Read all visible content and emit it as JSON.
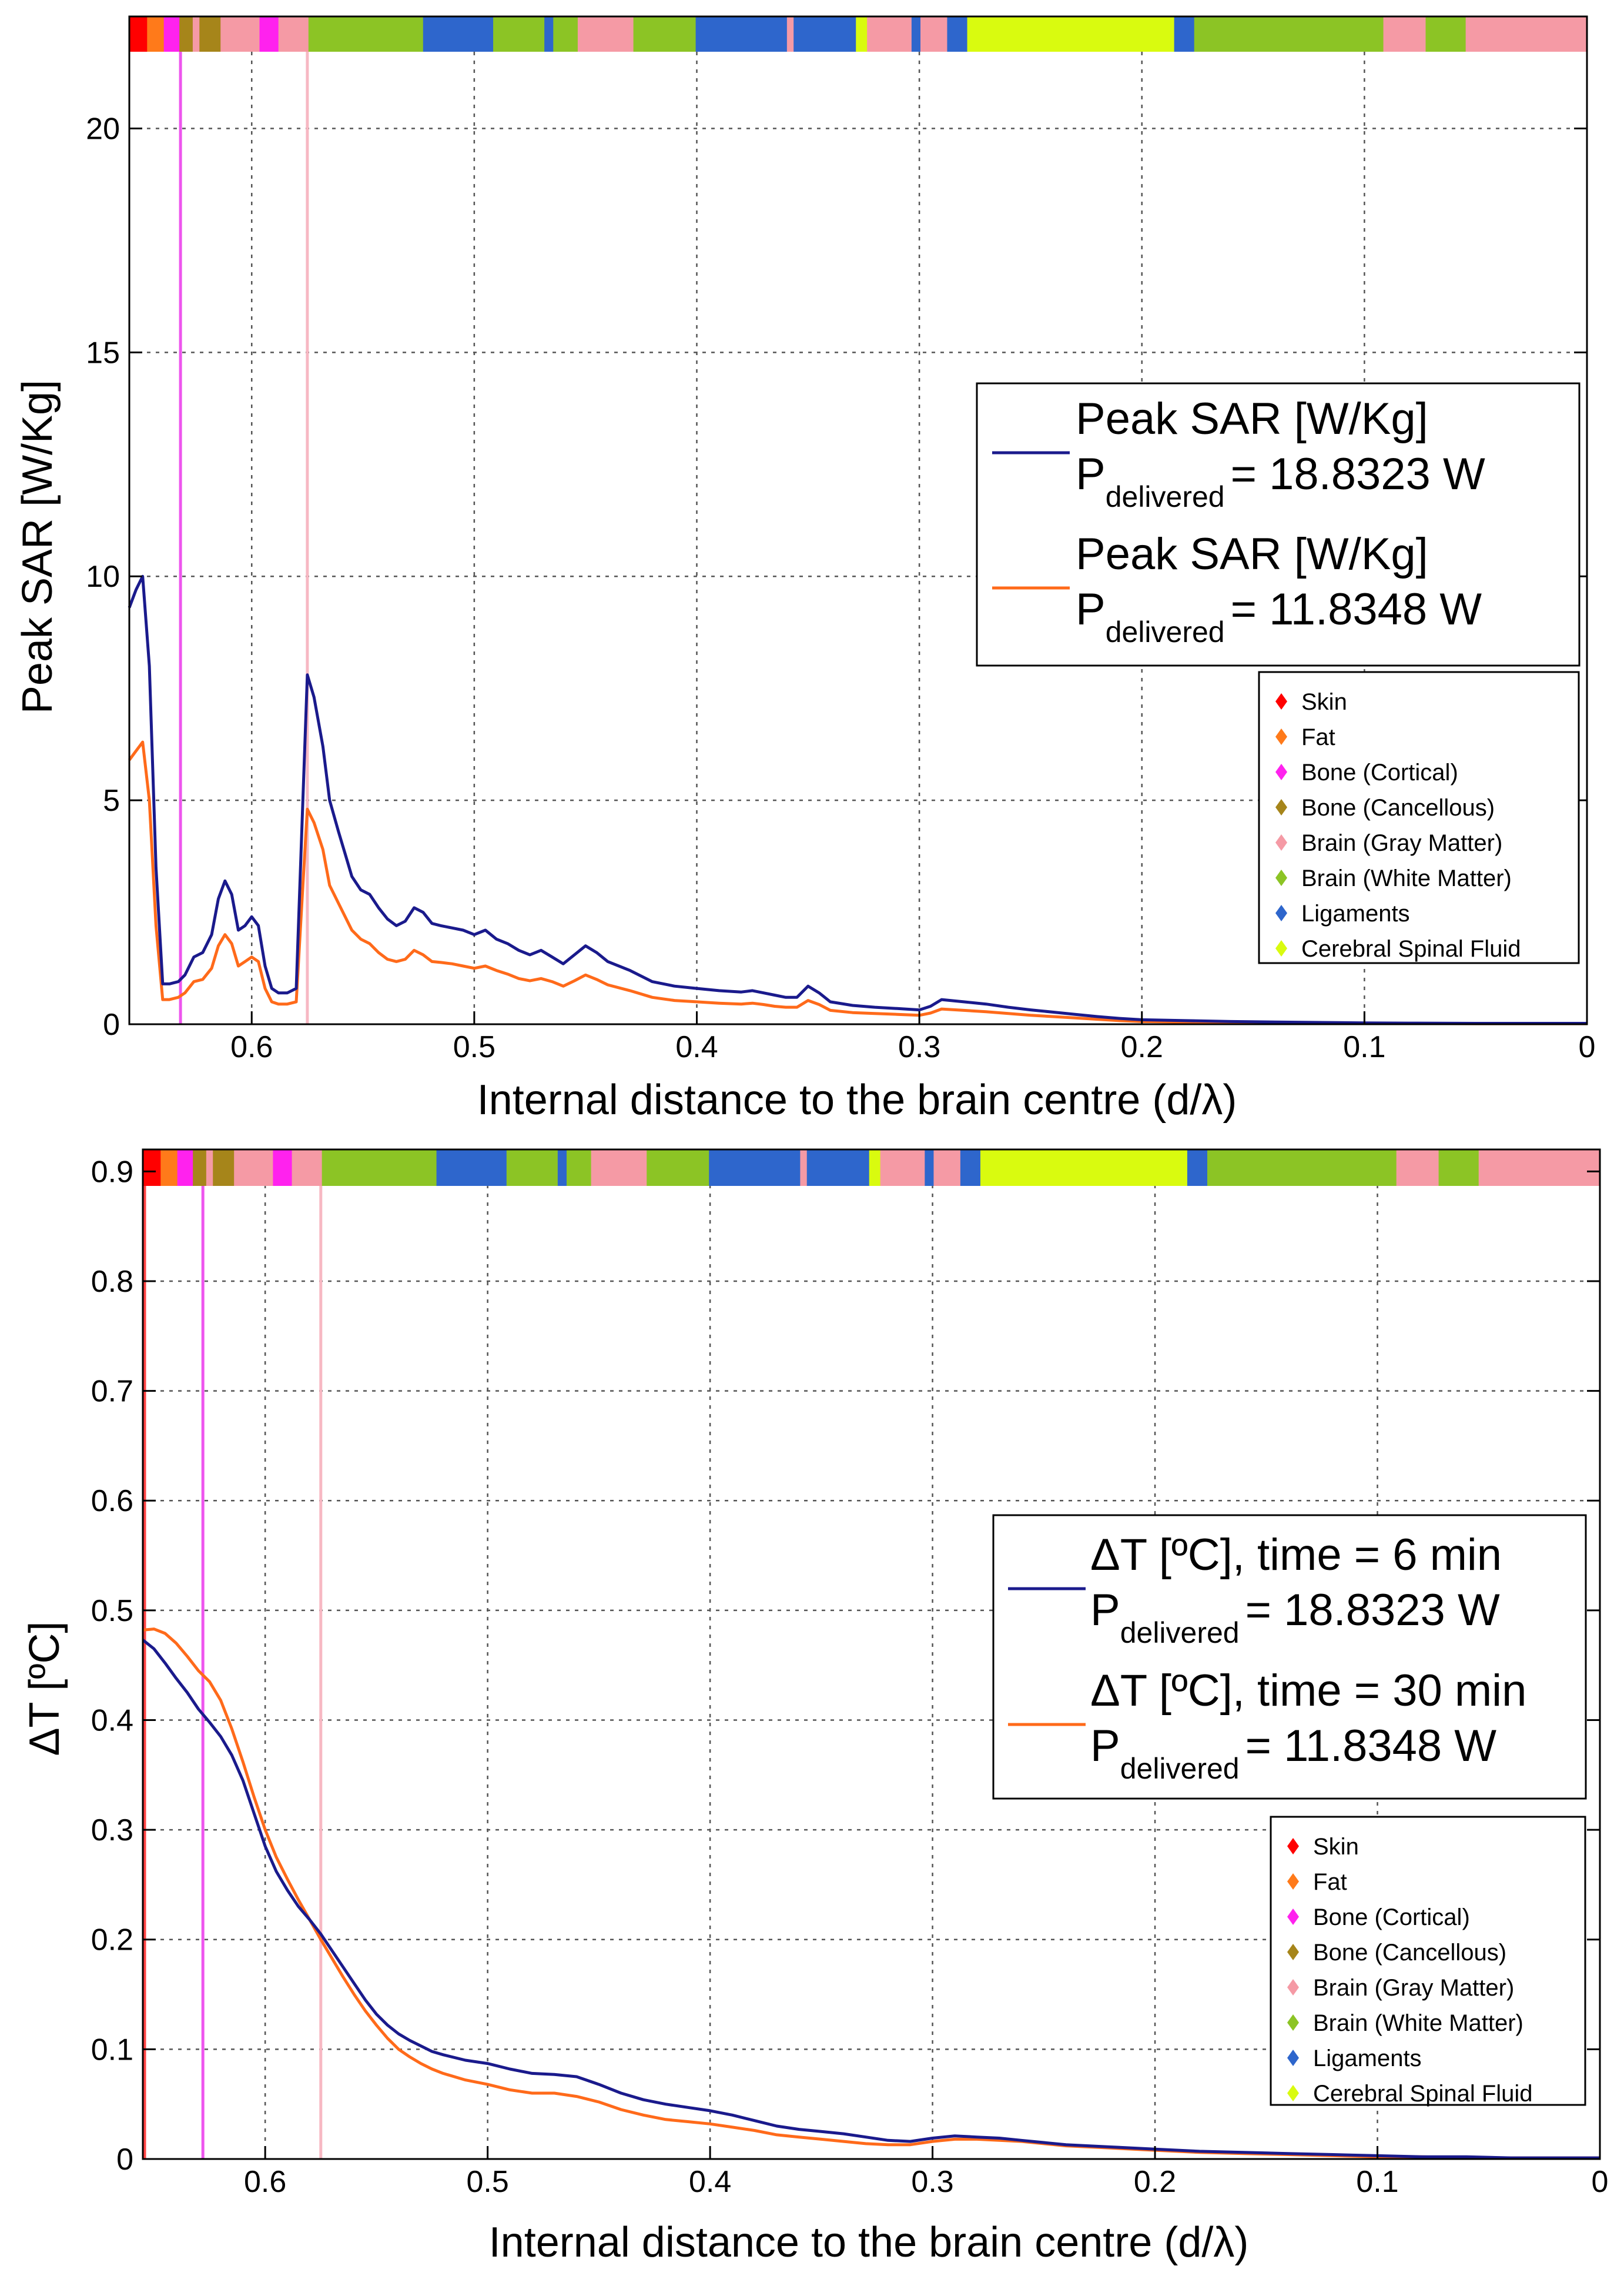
{
  "colors": {
    "series1": "#1a1a8c",
    "series2": "#ff6a1a",
    "bone_cortical_line": "#ee55ee",
    "gray_matter_line": "#f7b8c3",
    "skin_line": "#ff4444",
    "grid": "#555555"
  },
  "tissue_legend": [
    {
      "label": "Skin",
      "color": "#ff0000"
    },
    {
      "label": "Fat",
      "color": "#ff7a1a"
    },
    {
      "label": "Bone (Cortical)",
      "color": "#ff22ee"
    },
    {
      "label": "Bone (Cancellous)",
      "color": "#a6851a"
    },
    {
      "label": "Brain (Gray Matter)",
      "color": "#f59aa5"
    },
    {
      "label": "Brain (White Matter)",
      "color": "#8cc425"
    },
    {
      "label": "Ligaments",
      "color": "#2e66cc"
    },
    {
      "label": "Cerebral Spinal Fluid",
      "color": "#d9fb0f"
    }
  ],
  "tissue_strip": [
    {
      "x0": 0.655,
      "x1": 0.647,
      "tissue": "Skin"
    },
    {
      "x0": 0.647,
      "x1": 0.6395,
      "tissue": "Fat"
    },
    {
      "x0": 0.6395,
      "x1": 0.6325,
      "tissue": "Bone (Cortical)"
    },
    {
      "x0": 0.6325,
      "x1": 0.6265,
      "tissue": "Bone (Cancellous)"
    },
    {
      "x0": 0.6265,
      "x1": 0.6235,
      "tissue": "Brain (Gray Matter)"
    },
    {
      "x0": 0.6235,
      "x1": 0.614,
      "tissue": "Bone (Cancellous)"
    },
    {
      "x0": 0.614,
      "x1": 0.5965,
      "tissue": "Brain (Gray Matter)"
    },
    {
      "x0": 0.5965,
      "x1": 0.588,
      "tissue": "Bone (Cortical)"
    },
    {
      "x0": 0.588,
      "x1": 0.5745,
      "tissue": "Brain (Gray Matter)"
    },
    {
      "x0": 0.5745,
      "x1": 0.523,
      "tissue": "Brain (White Matter)"
    },
    {
      "x0": 0.523,
      "x1": 0.4915,
      "tissue": "Ligaments"
    },
    {
      "x0": 0.4915,
      "x1": 0.4685,
      "tissue": "Brain (White Matter)"
    },
    {
      "x0": 0.4685,
      "x1": 0.4645,
      "tissue": "Ligaments"
    },
    {
      "x0": 0.4645,
      "x1": 0.4535,
      "tissue": "Brain (White Matter)"
    },
    {
      "x0": 0.4535,
      "x1": 0.4285,
      "tissue": "Brain (Gray Matter)"
    },
    {
      "x0": 0.4285,
      "x1": 0.4005,
      "tissue": "Brain (White Matter)"
    },
    {
      "x0": 0.4005,
      "x1": 0.3595,
      "tissue": "Ligaments"
    },
    {
      "x0": 0.3595,
      "x1": 0.3565,
      "tissue": "Brain (Gray Matter)"
    },
    {
      "x0": 0.3565,
      "x1": 0.3285,
      "tissue": "Ligaments"
    },
    {
      "x0": 0.3285,
      "x1": 0.3235,
      "tissue": "Cerebral Spinal Fluid"
    },
    {
      "x0": 0.3235,
      "x1": 0.3035,
      "tissue": "Brain (Gray Matter)"
    },
    {
      "x0": 0.3035,
      "x1": 0.2995,
      "tissue": "Ligaments"
    },
    {
      "x0": 0.2995,
      "x1": 0.2875,
      "tissue": "Brain (Gray Matter)"
    },
    {
      "x0": 0.2875,
      "x1": 0.2785,
      "tissue": "Ligaments"
    },
    {
      "x0": 0.2785,
      "x1": 0.1855,
      "tissue": "Cerebral Spinal Fluid"
    },
    {
      "x0": 0.1855,
      "x1": 0.1765,
      "tissue": "Ligaments"
    },
    {
      "x0": 0.1765,
      "x1": 0.0915,
      "tissue": "Brain (White Matter)"
    },
    {
      "x0": 0.0915,
      "x1": 0.0725,
      "tissue": "Brain (Gray Matter)"
    },
    {
      "x0": 0.0725,
      "x1": 0.0545,
      "tissue": "Brain (White Matter)"
    },
    {
      "x0": 0.0545,
      "x1": 0.0,
      "tissue": "Brain (Gray Matter)"
    }
  ],
  "chart_data": [
    {
      "type": "line",
      "xlabel": "Internal distance to the brain centre (d/λ)",
      "ylabel": "Peak SAR [W/Kg]",
      "xlim": [
        0.655,
        0
      ],
      "ylim": [
        0,
        22.5
      ],
      "xticks": [
        0.6,
        0.5,
        0.4,
        0.3,
        0.2,
        0.1,
        0
      ],
      "xtick_labels": [
        "0.6",
        "0.5",
        "0.4",
        "0.3",
        "0.2",
        "0.1",
        "0"
      ],
      "yticks": [
        0,
        5,
        10,
        15,
        20
      ],
      "ytick_labels": [
        "0",
        "5",
        "10",
        "15",
        "20"
      ],
      "grid": true,
      "marker_lines": [
        {
          "x": 0.632,
          "kind": "bone_cortical_line"
        },
        {
          "x": 0.575,
          "kind": "gray_matter_line"
        }
      ],
      "legend": [
        {
          "line1": "Peak SAR [W/Kg]",
          "p_label": "P",
          "p_sub": "delivered",
          "value": "= 18.8323 W"
        },
        {
          "line1": "Peak SAR [W/Kg]",
          "p_label": "P",
          "p_sub": "delivered",
          "value": "= 11.8348 W"
        }
      ],
      "series": [
        {
          "name": "Peak SAR [W/Kg], P_delivered = 18.8323 W",
          "x": [
            0.655,
            0.652,
            0.649,
            0.646,
            0.643,
            0.64,
            0.637,
            0.633,
            0.63,
            0.626,
            0.622,
            0.618,
            0.615,
            0.612,
            0.609,
            0.606,
            0.603,
            0.6,
            0.597,
            0.594,
            0.591,
            0.588,
            0.584,
            0.58,
            0.577,
            0.575,
            0.572,
            0.568,
            0.565,
            0.561,
            0.558,
            0.555,
            0.551,
            0.547,
            0.543,
            0.539,
            0.535,
            0.531,
            0.527,
            0.523,
            0.519,
            0.515,
            0.51,
            0.505,
            0.5,
            0.495,
            0.49,
            0.485,
            0.48,
            0.475,
            0.47,
            0.465,
            0.46,
            0.455,
            0.45,
            0.445,
            0.44,
            0.43,
            0.42,
            0.41,
            0.4,
            0.39,
            0.38,
            0.375,
            0.37,
            0.365,
            0.36,
            0.355,
            0.35,
            0.345,
            0.34,
            0.33,
            0.32,
            0.31,
            0.3,
            0.295,
            0.29,
            0.28,
            0.27,
            0.26,
            0.25,
            0.24,
            0.23,
            0.22,
            0.21,
            0.2,
            0.18,
            0.16,
            0.14,
            0.12,
            0.1,
            0.08,
            0.05,
            0.02,
            0.0
          ],
          "y": [
            9.3,
            9.7,
            10.0,
            8.0,
            3.5,
            0.9,
            0.9,
            0.95,
            1.1,
            1.5,
            1.6,
            2.0,
            2.8,
            3.2,
            2.9,
            2.1,
            2.2,
            2.4,
            2.2,
            1.3,
            0.8,
            0.7,
            0.7,
            0.8,
            5.0,
            7.8,
            7.3,
            6.2,
            5.0,
            4.3,
            3.8,
            3.3,
            3.0,
            2.9,
            2.6,
            2.35,
            2.2,
            2.3,
            2.6,
            2.5,
            2.25,
            2.2,
            2.15,
            2.1,
            2.0,
            2.1,
            1.9,
            1.8,
            1.65,
            1.55,
            1.65,
            1.5,
            1.35,
            1.55,
            1.75,
            1.6,
            1.4,
            1.2,
            0.95,
            0.85,
            0.8,
            0.75,
            0.72,
            0.75,
            0.7,
            0.65,
            0.6,
            0.6,
            0.85,
            0.7,
            0.5,
            0.42,
            0.38,
            0.35,
            0.32,
            0.4,
            0.55,
            0.5,
            0.45,
            0.38,
            0.32,
            0.27,
            0.22,
            0.17,
            0.13,
            0.1,
            0.08,
            0.06,
            0.05,
            0.04,
            0.03,
            0.025,
            0.02,
            0.02,
            0.02
          ]
        },
        {
          "name": "Peak SAR [W/Kg], P_delivered = 11.8348 W",
          "x": [
            0.655,
            0.652,
            0.649,
            0.646,
            0.643,
            0.64,
            0.637,
            0.633,
            0.63,
            0.626,
            0.622,
            0.618,
            0.615,
            0.612,
            0.609,
            0.606,
            0.603,
            0.6,
            0.597,
            0.594,
            0.591,
            0.588,
            0.584,
            0.58,
            0.577,
            0.575,
            0.572,
            0.568,
            0.565,
            0.561,
            0.558,
            0.555,
            0.551,
            0.547,
            0.543,
            0.539,
            0.535,
            0.531,
            0.527,
            0.523,
            0.519,
            0.515,
            0.51,
            0.505,
            0.5,
            0.495,
            0.49,
            0.485,
            0.48,
            0.475,
            0.47,
            0.465,
            0.46,
            0.455,
            0.45,
            0.445,
            0.44,
            0.43,
            0.42,
            0.41,
            0.4,
            0.39,
            0.38,
            0.375,
            0.37,
            0.365,
            0.36,
            0.355,
            0.35,
            0.345,
            0.34,
            0.33,
            0.32,
            0.31,
            0.3,
            0.295,
            0.29,
            0.28,
            0.27,
            0.26,
            0.25,
            0.24,
            0.23,
            0.22,
            0.21,
            0.2,
            0.18,
            0.16,
            0.14,
            0.12,
            0.1,
            0.08,
            0.05,
            0.02,
            0.0
          ],
          "y": [
            5.9,
            6.1,
            6.3,
            5.0,
            2.2,
            0.55,
            0.55,
            0.6,
            0.7,
            0.95,
            1.0,
            1.25,
            1.75,
            2.0,
            1.8,
            1.3,
            1.4,
            1.5,
            1.4,
            0.8,
            0.5,
            0.45,
            0.45,
            0.5,
            3.1,
            4.8,
            4.5,
            3.9,
            3.1,
            2.7,
            2.4,
            2.1,
            1.9,
            1.8,
            1.6,
            1.45,
            1.4,
            1.45,
            1.65,
            1.55,
            1.4,
            1.38,
            1.35,
            1.3,
            1.25,
            1.3,
            1.2,
            1.12,
            1.02,
            0.97,
            1.02,
            0.95,
            0.85,
            0.97,
            1.1,
            1.0,
            0.88,
            0.75,
            0.6,
            0.53,
            0.5,
            0.47,
            0.45,
            0.47,
            0.44,
            0.4,
            0.38,
            0.38,
            0.53,
            0.44,
            0.31,
            0.26,
            0.24,
            0.22,
            0.2,
            0.25,
            0.34,
            0.31,
            0.28,
            0.24,
            0.2,
            0.17,
            0.14,
            0.11,
            0.08,
            0.06,
            0.05,
            0.04,
            0.03,
            0.025,
            0.02,
            0.015,
            0.012,
            0.012,
            0.012
          ]
        }
      ]
    },
    {
      "type": "line",
      "xlabel": "Internal distance to the brain centre (d/λ)",
      "ylabel": "ΔT [ºC]",
      "xlim": [
        0.655,
        0
      ],
      "ylim": [
        0,
        0.92
      ],
      "xticks": [
        0.6,
        0.5,
        0.4,
        0.3,
        0.2,
        0.1,
        0
      ],
      "xtick_labels": [
        "0.6",
        "0.5",
        "0.4",
        "0.3",
        "0.2",
        "0.1",
        "0"
      ],
      "yticks": [
        0,
        0.1,
        0.2,
        0.3,
        0.4,
        0.5,
        0.6,
        0.7,
        0.8,
        0.9
      ],
      "ytick_labels": [
        "0",
        "0.1",
        "0.2",
        "0.3",
        "0.4",
        "0.5",
        "0.6",
        "0.7",
        "0.8",
        "0.9"
      ],
      "grid": true,
      "marker_lines": [
        {
          "x": 0.655,
          "kind": "skin_line"
        },
        {
          "x": 0.628,
          "kind": "bone_cortical_line"
        },
        {
          "x": 0.575,
          "kind": "gray_matter_line"
        }
      ],
      "legend": [
        {
          "line1": "ΔT [ºC], time = 6 min",
          "p_label": "P",
          "p_sub": "delivered",
          "value": "= 18.8323 W"
        },
        {
          "line1": "ΔT [ºC], time = 30 min",
          "p_label": "P",
          "p_sub": "delivered",
          "value": "= 11.8348 W"
        }
      ],
      "series": [
        {
          "name": "ΔT [ºC], time = 6 min, P_delivered = 18.8323 W",
          "x": [
            0.655,
            0.65,
            0.645,
            0.64,
            0.635,
            0.63,
            0.625,
            0.62,
            0.615,
            0.61,
            0.605,
            0.6,
            0.595,
            0.59,
            0.585,
            0.58,
            0.575,
            0.57,
            0.565,
            0.56,
            0.555,
            0.55,
            0.545,
            0.54,
            0.535,
            0.53,
            0.525,
            0.52,
            0.51,
            0.5,
            0.49,
            0.48,
            0.47,
            0.46,
            0.45,
            0.44,
            0.43,
            0.42,
            0.41,
            0.4,
            0.39,
            0.38,
            0.37,
            0.36,
            0.35,
            0.34,
            0.33,
            0.32,
            0.31,
            0.3,
            0.29,
            0.28,
            0.27,
            0.26,
            0.25,
            0.24,
            0.22,
            0.2,
            0.18,
            0.16,
            0.14,
            0.12,
            0.1,
            0.08,
            0.06,
            0.04,
            0.02,
            0.0
          ],
          "y": [
            0.473,
            0.465,
            0.452,
            0.438,
            0.425,
            0.41,
            0.398,
            0.385,
            0.368,
            0.345,
            0.315,
            0.285,
            0.262,
            0.245,
            0.23,
            0.218,
            0.205,
            0.19,
            0.175,
            0.16,
            0.145,
            0.132,
            0.122,
            0.114,
            0.108,
            0.103,
            0.098,
            0.095,
            0.09,
            0.087,
            0.082,
            0.078,
            0.077,
            0.075,
            0.068,
            0.06,
            0.054,
            0.05,
            0.047,
            0.044,
            0.04,
            0.035,
            0.03,
            0.027,
            0.025,
            0.023,
            0.02,
            0.017,
            0.016,
            0.019,
            0.021,
            0.02,
            0.019,
            0.017,
            0.015,
            0.013,
            0.011,
            0.009,
            0.007,
            0.006,
            0.005,
            0.004,
            0.003,
            0.002,
            0.002,
            0.001,
            0.001,
            0.001
          ]
        },
        {
          "name": "ΔT [ºC], time = 30 min, P_delivered = 11.8348 W",
          "x": [
            0.655,
            0.65,
            0.645,
            0.64,
            0.635,
            0.63,
            0.625,
            0.62,
            0.615,
            0.61,
            0.605,
            0.6,
            0.595,
            0.59,
            0.585,
            0.58,
            0.575,
            0.57,
            0.565,
            0.56,
            0.555,
            0.55,
            0.545,
            0.54,
            0.535,
            0.53,
            0.525,
            0.52,
            0.51,
            0.5,
            0.49,
            0.48,
            0.47,
            0.46,
            0.45,
            0.44,
            0.43,
            0.42,
            0.41,
            0.4,
            0.39,
            0.38,
            0.37,
            0.36,
            0.35,
            0.34,
            0.33,
            0.32,
            0.31,
            0.3,
            0.29,
            0.28,
            0.27,
            0.26,
            0.25,
            0.24,
            0.22,
            0.2,
            0.18,
            0.16,
            0.14,
            0.12,
            0.1,
            0.08,
            0.06,
            0.04,
            0.02,
            0.0
          ],
          "y": [
            0.482,
            0.483,
            0.479,
            0.47,
            0.458,
            0.445,
            0.435,
            0.418,
            0.392,
            0.362,
            0.33,
            0.3,
            0.275,
            0.255,
            0.236,
            0.218,
            0.2,
            0.183,
            0.166,
            0.15,
            0.135,
            0.122,
            0.11,
            0.1,
            0.093,
            0.087,
            0.082,
            0.078,
            0.072,
            0.068,
            0.063,
            0.06,
            0.06,
            0.057,
            0.052,
            0.045,
            0.04,
            0.036,
            0.034,
            0.032,
            0.029,
            0.026,
            0.022,
            0.02,
            0.018,
            0.016,
            0.014,
            0.013,
            0.013,
            0.016,
            0.018,
            0.018,
            0.017,
            0.016,
            0.014,
            0.012,
            0.01,
            0.008,
            0.006,
            0.005,
            0.004,
            0.003,
            0.002,
            0.002,
            0.001,
            0.001,
            0.001,
            0.001
          ]
        }
      ]
    }
  ]
}
